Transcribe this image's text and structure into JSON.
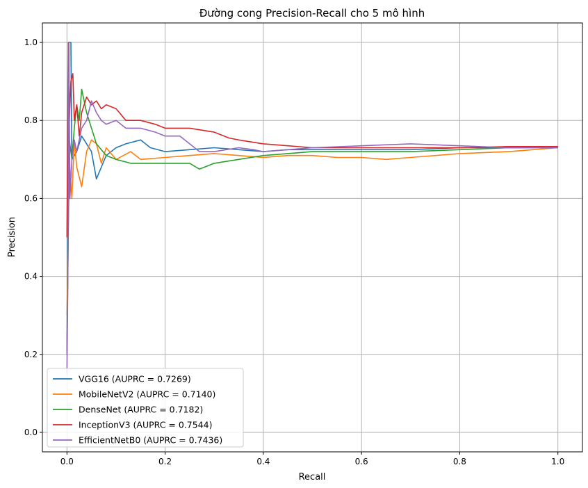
{
  "chart_data": {
    "type": "line",
    "title": "Đường cong Precision-Recall cho 5 mô hình",
    "xlabel": "Recall",
    "ylabel": "Precision",
    "xlim": [
      -0.05,
      1.05
    ],
    "ylim": [
      -0.05,
      1.05
    ],
    "xticks": [
      0.0,
      0.2,
      0.4,
      0.6,
      0.8,
      1.0
    ],
    "xtick_labels": [
      "0.0",
      "0.2",
      "0.4",
      "0.6",
      "0.8",
      "1.0"
    ],
    "yticks": [
      0.0,
      0.2,
      0.4,
      0.6,
      0.8,
      1.0
    ],
    "ytick_labels": [
      "0.0",
      "0.2",
      "0.4",
      "0.6",
      "0.8",
      "1.0"
    ],
    "grid": true,
    "legend_position": "lower-left",
    "series": [
      {
        "name": "VGG16 (AUPRC = 0.7269)",
        "color": "#1f77b4",
        "points": [
          [
            0.0,
            0.2
          ],
          [
            0.002,
            0.6
          ],
          [
            0.003,
            1.0
          ],
          [
            0.008,
            1.0
          ],
          [
            0.01,
            0.7
          ],
          [
            0.02,
            0.72
          ],
          [
            0.03,
            0.76
          ],
          [
            0.04,
            0.74
          ],
          [
            0.05,
            0.72
          ],
          [
            0.06,
            0.65
          ],
          [
            0.07,
            0.68
          ],
          [
            0.08,
            0.71
          ],
          [
            0.1,
            0.73
          ],
          [
            0.12,
            0.74
          ],
          [
            0.15,
            0.75
          ],
          [
            0.17,
            0.73
          ],
          [
            0.2,
            0.72
          ],
          [
            0.25,
            0.725
          ],
          [
            0.3,
            0.73
          ],
          [
            0.35,
            0.725
          ],
          [
            0.4,
            0.72
          ],
          [
            0.45,
            0.725
          ],
          [
            0.5,
            0.725
          ],
          [
            0.6,
            0.725
          ],
          [
            0.7,
            0.725
          ],
          [
            0.8,
            0.73
          ],
          [
            0.9,
            0.73
          ],
          [
            1.0,
            0.73
          ]
        ]
      },
      {
        "name": "MobileNetV2 (AUPRC = 0.7140)",
        "color": "#ff7f0e",
        "points": [
          [
            0.0,
            0.3
          ],
          [
            0.005,
            0.7
          ],
          [
            0.01,
            0.6
          ],
          [
            0.015,
            0.75
          ],
          [
            0.02,
            0.68
          ],
          [
            0.03,
            0.63
          ],
          [
            0.04,
            0.72
          ],
          [
            0.05,
            0.75
          ],
          [
            0.06,
            0.74
          ],
          [
            0.07,
            0.69
          ],
          [
            0.08,
            0.73
          ],
          [
            0.1,
            0.7
          ],
          [
            0.13,
            0.72
          ],
          [
            0.15,
            0.7
          ],
          [
            0.2,
            0.705
          ],
          [
            0.25,
            0.71
          ],
          [
            0.3,
            0.715
          ],
          [
            0.35,
            0.71
          ],
          [
            0.4,
            0.705
          ],
          [
            0.45,
            0.71
          ],
          [
            0.5,
            0.71
          ],
          [
            0.55,
            0.705
          ],
          [
            0.6,
            0.705
          ],
          [
            0.65,
            0.7
          ],
          [
            0.7,
            0.705
          ],
          [
            0.8,
            0.715
          ],
          [
            0.9,
            0.72
          ],
          [
            1.0,
            0.73
          ]
        ]
      },
      {
        "name": "DenseNet (AUPRC = 0.7182)",
        "color": "#2ca02c",
        "points": [
          [
            0.0,
            0.2
          ],
          [
            0.005,
            0.75
          ],
          [
            0.01,
            0.7
          ],
          [
            0.015,
            0.78
          ],
          [
            0.02,
            0.84
          ],
          [
            0.025,
            0.8
          ],
          [
            0.03,
            0.88
          ],
          [
            0.04,
            0.82
          ],
          [
            0.05,
            0.78
          ],
          [
            0.06,
            0.74
          ],
          [
            0.08,
            0.71
          ],
          [
            0.1,
            0.7
          ],
          [
            0.13,
            0.69
          ],
          [
            0.15,
            0.69
          ],
          [
            0.2,
            0.69
          ],
          [
            0.25,
            0.69
          ],
          [
            0.27,
            0.675
          ],
          [
            0.3,
            0.69
          ],
          [
            0.35,
            0.7
          ],
          [
            0.4,
            0.71
          ],
          [
            0.45,
            0.715
          ],
          [
            0.5,
            0.72
          ],
          [
            0.6,
            0.72
          ],
          [
            0.7,
            0.72
          ],
          [
            0.8,
            0.725
          ],
          [
            0.9,
            0.73
          ],
          [
            1.0,
            0.73
          ]
        ]
      },
      {
        "name": "InceptionV3 (AUPRC = 0.7544)",
        "color": "#d62728",
        "points": [
          [
            0.0,
            0.5
          ],
          [
            0.003,
            1.0
          ],
          [
            0.005,
            0.8
          ],
          [
            0.008,
            0.9
          ],
          [
            0.012,
            0.92
          ],
          [
            0.015,
            0.8
          ],
          [
            0.02,
            0.84
          ],
          [
            0.025,
            0.76
          ],
          [
            0.03,
            0.82
          ],
          [
            0.04,
            0.86
          ],
          [
            0.05,
            0.84
          ],
          [
            0.06,
            0.85
          ],
          [
            0.07,
            0.83
          ],
          [
            0.08,
            0.84
          ],
          [
            0.1,
            0.83
          ],
          [
            0.12,
            0.8
          ],
          [
            0.15,
            0.8
          ],
          [
            0.18,
            0.79
          ],
          [
            0.2,
            0.78
          ],
          [
            0.25,
            0.78
          ],
          [
            0.3,
            0.77
          ],
          [
            0.33,
            0.755
          ],
          [
            0.35,
            0.75
          ],
          [
            0.4,
            0.74
          ],
          [
            0.45,
            0.735
          ],
          [
            0.5,
            0.73
          ],
          [
            0.6,
            0.73
          ],
          [
            0.7,
            0.73
          ],
          [
            0.8,
            0.73
          ],
          [
            0.9,
            0.733
          ],
          [
            1.0,
            0.733
          ]
        ]
      },
      {
        "name": "EfficientNetB0 (AUPRC = 0.7436)",
        "color": "#9467bd",
        "points": [
          [
            0.0,
            0.15
          ],
          [
            0.002,
            0.4
          ],
          [
            0.004,
            1.0
          ],
          [
            0.006,
            0.6
          ],
          [
            0.01,
            0.7
          ],
          [
            0.015,
            0.75
          ],
          [
            0.02,
            0.72
          ],
          [
            0.03,
            0.78
          ],
          [
            0.04,
            0.8
          ],
          [
            0.05,
            0.85
          ],
          [
            0.06,
            0.82
          ],
          [
            0.07,
            0.8
          ],
          [
            0.08,
            0.79
          ],
          [
            0.1,
            0.8
          ],
          [
            0.12,
            0.78
          ],
          [
            0.15,
            0.78
          ],
          [
            0.18,
            0.77
          ],
          [
            0.2,
            0.76
          ],
          [
            0.23,
            0.76
          ],
          [
            0.25,
            0.74
          ],
          [
            0.27,
            0.72
          ],
          [
            0.3,
            0.72
          ],
          [
            0.35,
            0.73
          ],
          [
            0.38,
            0.725
          ],
          [
            0.4,
            0.72
          ],
          [
            0.45,
            0.725
          ],
          [
            0.5,
            0.73
          ],
          [
            0.6,
            0.735
          ],
          [
            0.7,
            0.74
          ],
          [
            0.8,
            0.735
          ],
          [
            0.9,
            0.73
          ],
          [
            1.0,
            0.73
          ]
        ]
      }
    ]
  }
}
